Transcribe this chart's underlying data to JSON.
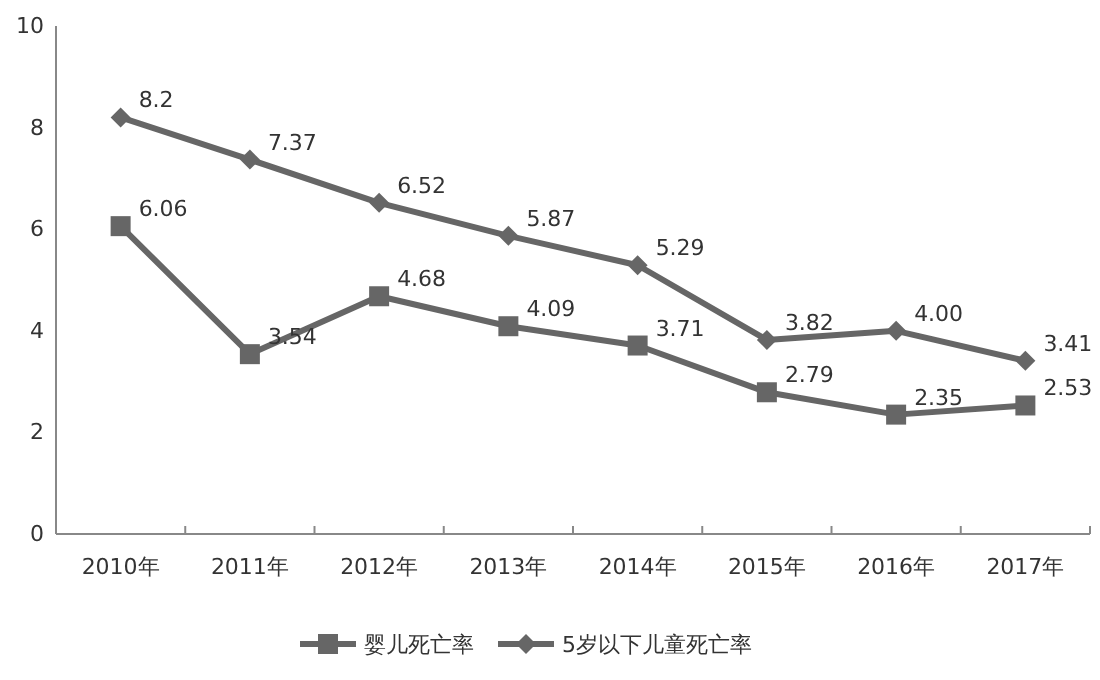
{
  "chart_data": {
    "type": "line",
    "categories": [
      "2010年",
      "2011年",
      "2012年",
      "2013年",
      "2014年",
      "2015年",
      "2016年",
      "2017年"
    ],
    "ylim": [
      0,
      10
    ],
    "yticks": [
      0,
      2,
      4,
      6,
      8,
      10
    ],
    "grid": false,
    "legend": "bottom",
    "line_style": "solid",
    "series": [
      {
        "name": "婴儿死亡率",
        "color": "#666666",
        "marker": "square",
        "values": [
          6.06,
          3.54,
          4.68,
          4.09,
          3.71,
          2.79,
          2.35,
          2.53
        ],
        "value_labels": [
          "6.06",
          "3.54",
          "4.68",
          "4.09",
          "3.71",
          "2.79",
          "2.35",
          "2.53"
        ]
      },
      {
        "name": "5岁以下儿童死亡率",
        "color": "#666666",
        "marker": "diamond",
        "values": [
          8.2,
          7.37,
          6.52,
          5.87,
          5.29,
          3.82,
          4.0,
          3.41
        ],
        "value_labels": [
          "8.2",
          "7.37",
          "6.52",
          "5.87",
          "5.29",
          "3.82",
          "4.00",
          "3.41"
        ]
      }
    ]
  }
}
